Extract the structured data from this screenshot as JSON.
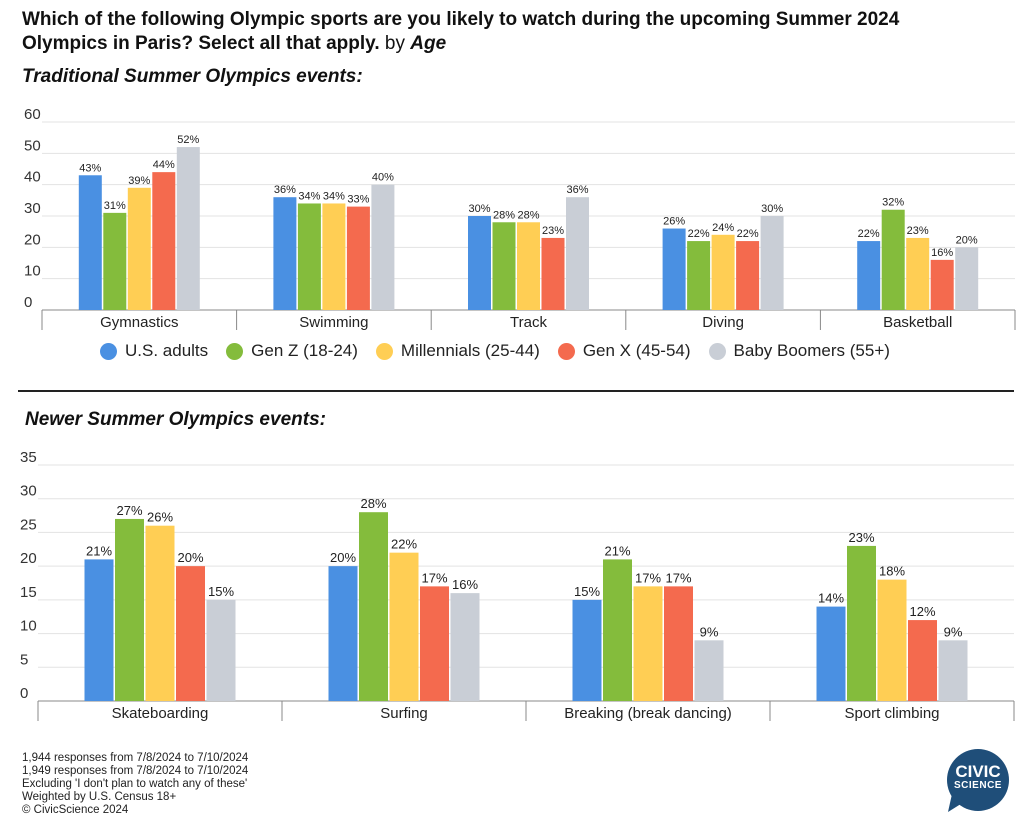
{
  "title": {
    "question": "Which of the following Olympic sports are you likely to watch during the upcoming Summer 2024 Olympics in Paris? Select all that apply.",
    "by_label": "by",
    "variable": "Age"
  },
  "subheads": {
    "traditional": "Traditional Summer Olympics events:",
    "newer": "Newer Summer Olympics events:"
  },
  "legend": [
    {
      "name": "U.S. adults",
      "color": "#4A90E2"
    },
    {
      "name": "Gen Z (18-24)",
      "color": "#84BC3C"
    },
    {
      "name": "Millennials (25-44)",
      "color": "#FFCE54"
    },
    {
      "name": "Gen X (45-54)",
      "color": "#F46A4E"
    },
    {
      "name": "Baby Boomers (55+)",
      "color": "#C9CED6"
    }
  ],
  "chart_data": [
    {
      "type": "bar",
      "title": "Traditional Summer Olympics events:",
      "categories": [
        "Gymnastics",
        "Swimming",
        "Track",
        "Diving",
        "Basketball"
      ],
      "series": [
        {
          "name": "U.S. adults",
          "values": [
            43,
            36,
            30,
            26,
            22
          ]
        },
        {
          "name": "Gen Z (18-24)",
          "values": [
            31,
            34,
            28,
            22,
            32
          ]
        },
        {
          "name": "Millennials (25-44)",
          "values": [
            39,
            34,
            28,
            24,
            23
          ]
        },
        {
          "name": "Gen X (45-54)",
          "values": [
            44,
            33,
            23,
            22,
            16
          ]
        },
        {
          "name": "Baby Boomers (55+)",
          "values": [
            52,
            40,
            36,
            30,
            20
          ]
        }
      ],
      "ylim": [
        0,
        60
      ],
      "yticks": [
        0,
        10,
        20,
        30,
        40,
        50,
        60
      ],
      "value_suffix": "%",
      "grid": true,
      "legend": "bottom"
    },
    {
      "type": "bar",
      "title": "Newer Summer Olympics events:",
      "categories": [
        "Skateboarding",
        "Surfing",
        "Breaking (break dancing)",
        "Sport climbing"
      ],
      "series": [
        {
          "name": "U.S. adults",
          "values": [
            21,
            20,
            15,
            14
          ]
        },
        {
          "name": "Gen Z (18-24)",
          "values": [
            27,
            28,
            21,
            23
          ]
        },
        {
          "name": "Millennials (25-44)",
          "values": [
            26,
            22,
            17,
            18
          ]
        },
        {
          "name": "Gen X (45-54)",
          "values": [
            20,
            17,
            17,
            12
          ]
        },
        {
          "name": "Baby Boomers (55+)",
          "values": [
            15,
            16,
            9,
            9
          ]
        }
      ],
      "ylim": [
        0,
        35
      ],
      "yticks": [
        0,
        5,
        10,
        15,
        20,
        25,
        30,
        35
      ],
      "value_suffix": "%",
      "grid": true
    }
  ],
  "notes": [
    "1,944 responses from 7/8/2024 to 7/10/2024",
    "1,949 responses from 7/8/2024 to 7/10/2024",
    "Excluding 'I don't plan to watch any of these'",
    "Weighted by U.S. Census 18+",
    "© CivicScience 2024"
  ],
  "logo": {
    "line1": "CIVIC",
    "line2": "SCIENCE",
    "color": "#1F4E79"
  }
}
